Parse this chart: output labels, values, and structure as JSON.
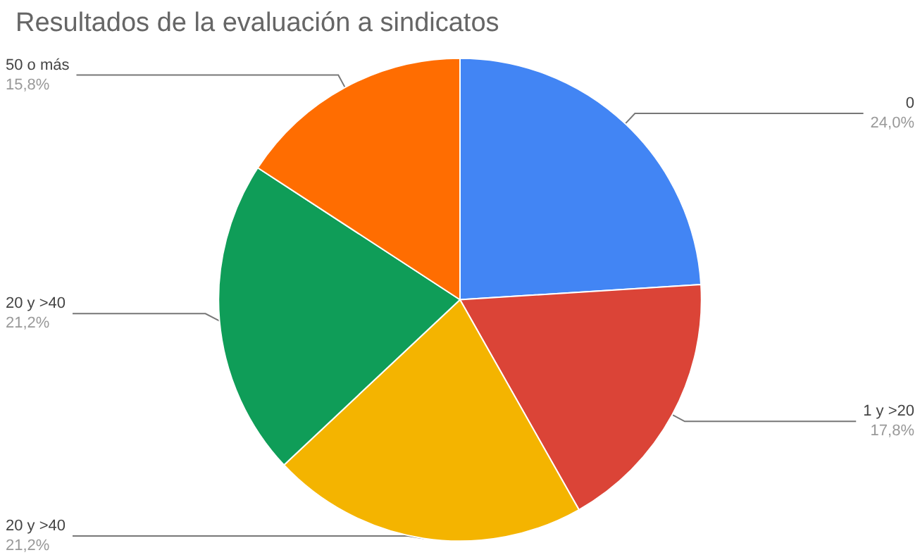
{
  "chart_data": {
    "type": "pie",
    "title": "Resultados de la evaluación a sindicatos",
    "categories": [
      "0",
      "1 y >20",
      "20 y >40",
      "20 y >40",
      "50 o más"
    ],
    "values": [
      24.0,
      17.8,
      21.2,
      21.2,
      15.8
    ],
    "value_labels": [
      "24,0%",
      "17,8%",
      "21,2%",
      "21,2%",
      "15,8%"
    ],
    "colors": [
      "#4285f4",
      "#db4437",
      "#f4b400",
      "#0f9d58",
      "#ff6d01"
    ],
    "legend": false
  }
}
